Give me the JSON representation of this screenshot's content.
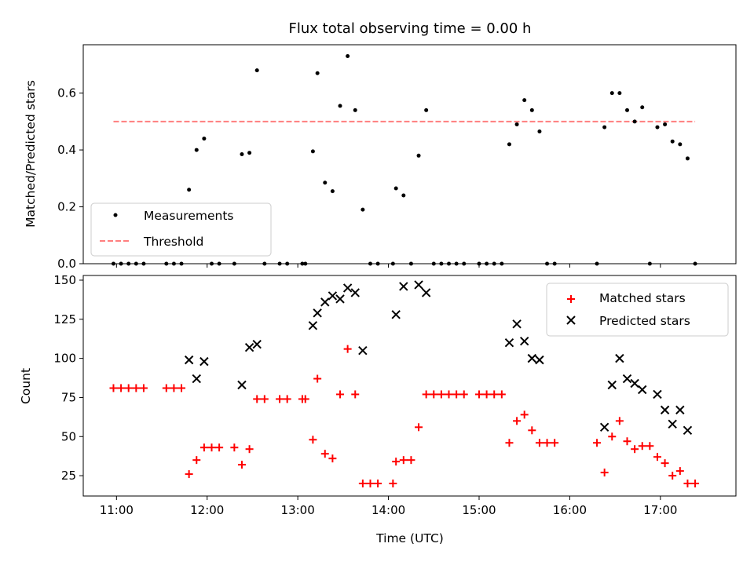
{
  "chart_data": [
    {
      "type": "scatter",
      "title": "Flux total observing time = 0.00 h",
      "xlabel": "",
      "ylabel": "Matched/Predicted stars",
      "x_range": [
        "10:38",
        "17:50"
      ],
      "ylim": [
        0,
        0.77
      ],
      "yticks": [
        "0.0",
        "0.2",
        "0.4",
        "0.6"
      ],
      "legend_position": "lower-left",
      "series": [
        {
          "name": "Measurements",
          "marker": "dot",
          "color": "#000000",
          "points": [
            [
              "10:58",
              0
            ],
            [
              "11:03",
              0
            ],
            [
              "11:08",
              0
            ],
            [
              "11:13",
              0
            ],
            [
              "11:18",
              0
            ],
            [
              "11:33",
              0
            ],
            [
              "11:38",
              0
            ],
            [
              "11:43",
              0
            ],
            [
              "11:48",
              0.26
            ],
            [
              "11:53",
              0.4
            ],
            [
              "11:58",
              0.44
            ],
            [
              "12:03",
              0
            ],
            [
              "12:08",
              0
            ],
            [
              "12:18",
              0
            ],
            [
              "12:23",
              0.385
            ],
            [
              "12:28",
              0.39
            ],
            [
              "12:33",
              0.68
            ],
            [
              "12:38",
              0
            ],
            [
              "12:48",
              0
            ],
            [
              "12:53",
              0
            ],
            [
              "13:03",
              0
            ],
            [
              "13:05",
              0
            ],
            [
              "13:10",
              0.395
            ],
            [
              "13:13",
              0.67
            ],
            [
              "13:18",
              0.285
            ],
            [
              "13:23",
              0.255
            ],
            [
              "13:28",
              0.555
            ],
            [
              "13:33",
              0.73
            ],
            [
              "13:38",
              0.54
            ],
            [
              "13:43",
              0.19
            ],
            [
              "13:48",
              0
            ],
            [
              "13:53",
              0
            ],
            [
              "14:03",
              0
            ],
            [
              "14:05",
              0.265
            ],
            [
              "14:10",
              0.24
            ],
            [
              "14:15",
              0
            ],
            [
              "14:20",
              0.38
            ],
            [
              "14:25",
              0.54
            ],
            [
              "14:30",
              0
            ],
            [
              "14:35",
              0
            ],
            [
              "14:40",
              0
            ],
            [
              "14:45",
              0
            ],
            [
              "14:50",
              0
            ],
            [
              "15:00",
              0
            ],
            [
              "15:05",
              0
            ],
            [
              "15:10",
              0
            ],
            [
              "15:15",
              0
            ],
            [
              "15:20",
              0.42
            ],
            [
              "15:25",
              0.49
            ],
            [
              "15:30",
              0.575
            ],
            [
              "15:35",
              0.54
            ],
            [
              "15:40",
              0.465
            ],
            [
              "15:45",
              0
            ],
            [
              "15:50",
              0
            ],
            [
              "16:18",
              0
            ],
            [
              "16:23",
              0.48
            ],
            [
              "16:28",
              0.6
            ],
            [
              "16:33",
              0.6
            ],
            [
              "16:38",
              0.54
            ],
            [
              "16:43",
              0.5
            ],
            [
              "16:48",
              0.55
            ],
            [
              "16:53",
              0
            ],
            [
              "16:58",
              0.48
            ],
            [
              "17:03",
              0.49
            ],
            [
              "17:08",
              0.43
            ],
            [
              "17:13",
              0.42
            ],
            [
              "17:18",
              0.37
            ],
            [
              "17:23",
              0
            ]
          ]
        },
        {
          "name": "Threshold",
          "marker": "dashed-line",
          "color": "#ff7f7f",
          "points": [
            [
              "10:58",
              0.5
            ],
            [
              "17:23",
              0.5
            ]
          ]
        }
      ]
    },
    {
      "type": "scatter",
      "title": "",
      "xlabel": "Time (UTC)",
      "ylabel": "Count",
      "x_range": [
        "10:38",
        "17:50"
      ],
      "xticks": [
        "11:00",
        "12:00",
        "13:00",
        "14:00",
        "15:00",
        "16:00",
        "17:00"
      ],
      "ylim": [
        12,
        153
      ],
      "yticks": [
        "25",
        "50",
        "75",
        "100",
        "125",
        "150"
      ],
      "legend_position": "top-right",
      "series": [
        {
          "name": "Matched stars",
          "marker": "plus",
          "color": "#ff0000",
          "points": [
            [
              "10:58",
              81
            ],
            [
              "11:03",
              81
            ],
            [
              "11:08",
              81
            ],
            [
              "11:13",
              81
            ],
            [
              "11:18",
              81
            ],
            [
              "11:33",
              81
            ],
            [
              "11:38",
              81
            ],
            [
              "11:43",
              81
            ],
            [
              "11:48",
              26
            ],
            [
              "11:53",
              35
            ],
            [
              "11:58",
              43
            ],
            [
              "12:03",
              43
            ],
            [
              "12:08",
              43
            ],
            [
              "12:18",
              43
            ],
            [
              "12:23",
              32
            ],
            [
              "12:28",
              42
            ],
            [
              "12:33",
              74
            ],
            [
              "12:38",
              74
            ],
            [
              "12:48",
              74
            ],
            [
              "12:53",
              74
            ],
            [
              "13:03",
              74
            ],
            [
              "13:05",
              74
            ],
            [
              "13:10",
              48
            ],
            [
              "13:13",
              87
            ],
            [
              "13:18",
              39
            ],
            [
              "13:23",
              36
            ],
            [
              "13:28",
              77
            ],
            [
              "13:33",
              106
            ],
            [
              "13:38",
              77
            ],
            [
              "13:43",
              20
            ],
            [
              "13:48",
              20
            ],
            [
              "13:53",
              20
            ],
            [
              "14:03",
              20
            ],
            [
              "14:05",
              34
            ],
            [
              "14:10",
              35
            ],
            [
              "14:15",
              35
            ],
            [
              "14:20",
              56
            ],
            [
              "14:25",
              77
            ],
            [
              "14:30",
              77
            ],
            [
              "14:35",
              77
            ],
            [
              "14:40",
              77
            ],
            [
              "14:45",
              77
            ],
            [
              "14:50",
              77
            ],
            [
              "15:00",
              77
            ],
            [
              "15:05",
              77
            ],
            [
              "15:10",
              77
            ],
            [
              "15:15",
              77
            ],
            [
              "15:20",
              46
            ],
            [
              "15:25",
              60
            ],
            [
              "15:30",
              64
            ],
            [
              "15:35",
              54
            ],
            [
              "15:40",
              46
            ],
            [
              "15:45",
              46
            ],
            [
              "15:50",
              46
            ],
            [
              "16:18",
              46
            ],
            [
              "16:23",
              27
            ],
            [
              "16:28",
              50
            ],
            [
              "16:33",
              60
            ],
            [
              "16:38",
              47
            ],
            [
              "16:43",
              42
            ],
            [
              "16:48",
              44
            ],
            [
              "16:53",
              44
            ],
            [
              "16:58",
              37
            ],
            [
              "17:03",
              33
            ],
            [
              "17:08",
              25
            ],
            [
              "17:13",
              28
            ],
            [
              "17:18",
              20
            ],
            [
              "17:23",
              20
            ]
          ]
        },
        {
          "name": "Predicted stars",
          "marker": "x",
          "color": "#000000",
          "points": [
            [
              "11:48",
              99
            ],
            [
              "11:53",
              87
            ],
            [
              "11:58",
              98
            ],
            [
              "12:23",
              83
            ],
            [
              "12:28",
              107
            ],
            [
              "12:33",
              109
            ],
            [
              "13:10",
              121
            ],
            [
              "13:13",
              129
            ],
            [
              "13:18",
              136
            ],
            [
              "13:23",
              140
            ],
            [
              "13:28",
              138
            ],
            [
              "13:33",
              145
            ],
            [
              "13:38",
              142
            ],
            [
              "13:43",
              105
            ],
            [
              "14:05",
              128
            ],
            [
              "14:10",
              146
            ],
            [
              "14:20",
              147
            ],
            [
              "14:25",
              142
            ],
            [
              "15:20",
              110
            ],
            [
              "15:25",
              122
            ],
            [
              "15:30",
              111
            ],
            [
              "15:35",
              100
            ],
            [
              "15:40",
              99
            ],
            [
              "16:23",
              56
            ],
            [
              "16:28",
              83
            ],
            [
              "16:33",
              100
            ],
            [
              "16:38",
              87
            ],
            [
              "16:43",
              84
            ],
            [
              "16:48",
              80
            ],
            [
              "16:58",
              77
            ],
            [
              "17:03",
              67
            ],
            [
              "17:08",
              58
            ],
            [
              "17:13",
              67
            ],
            [
              "17:18",
              54
            ]
          ]
        }
      ]
    }
  ]
}
